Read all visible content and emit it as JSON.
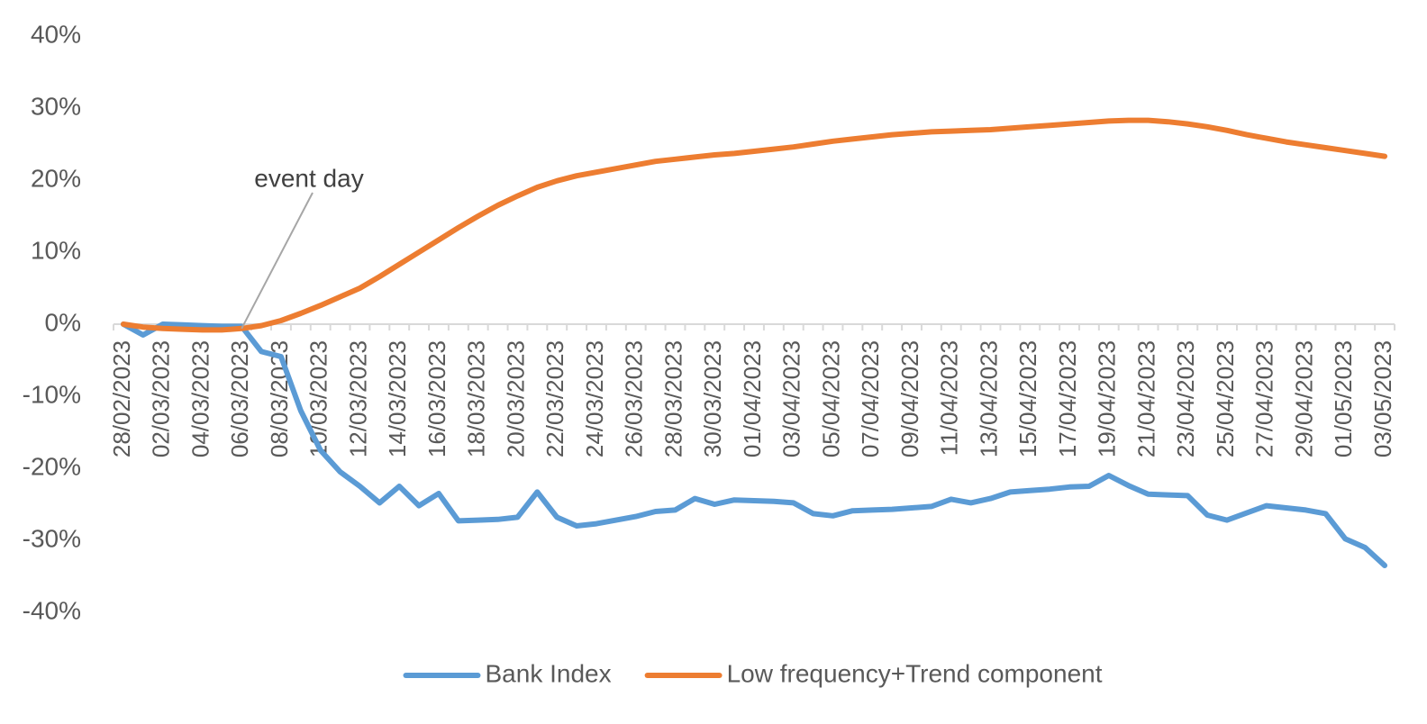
{
  "chart_data": {
    "type": "line",
    "categories": [
      "28/02/2023",
      null,
      "02/03/2023",
      null,
      "04/03/2023",
      null,
      "06/03/2023",
      null,
      "08/03/2023",
      null,
      "10/03/2023",
      null,
      "12/03/2023",
      null,
      "14/03/2023",
      null,
      "16/03/2023",
      null,
      "18/03/2023",
      null,
      "20/03/2023",
      null,
      "22/03/2023",
      null,
      "24/03/2023",
      null,
      "26/03/2023",
      null,
      "28/03/2023",
      null,
      "30/03/2023",
      null,
      "01/04/2023",
      null,
      "03/04/2023",
      null,
      "05/04/2023",
      null,
      "07/04/2023",
      null,
      "09/04/2023",
      null,
      "11/04/2023",
      null,
      "13/04/2023",
      null,
      "15/04/2023",
      null,
      "17/04/2023",
      null,
      "19/04/2023",
      null,
      "21/04/2023",
      null,
      "23/04/2023",
      null,
      "25/04/2023",
      null,
      "27/04/2023",
      null,
      "29/04/2023",
      null,
      "01/05/2023",
      null,
      "03/05/2023"
    ],
    "series": [
      {
        "name": "Bank Index",
        "color": "#5b9bd5",
        "values": [
          0,
          -1.5,
          0,
          -0.1,
          -0.2,
          -0.3,
          -0.3,
          -3.8,
          -4.5,
          -12,
          -17.5,
          -20.5,
          -22.5,
          -24.8,
          -22.5,
          -25.2,
          -23.5,
          -27.3,
          -27.2,
          -27.1,
          -26.8,
          -23.3,
          -26.8,
          -28,
          -27.7,
          -27.2,
          -26.7,
          -26,
          -25.8,
          -24.2,
          -25,
          -24.4,
          -24.5,
          -24.6,
          -24.8,
          -26.3,
          -26.6,
          -25.9,
          -25.8,
          -25.7,
          -25.5,
          -25.3,
          -24.3,
          -24.8,
          -24.2,
          -23.3,
          -23.1,
          -22.9,
          -22.6,
          -22.5,
          -21,
          -22.4,
          -23.6,
          -23.7,
          -23.8,
          -26.5,
          -27.2,
          -26.2,
          -25.2,
          -25.5,
          -25.8,
          -26.3,
          -29.8,
          -31,
          -33.5
        ]
      },
      {
        "name": "Low frequency+Trend component",
        "color": "#ed7d31",
        "values": [
          0,
          -0.4,
          -0.6,
          -0.7,
          -0.8,
          -0.8,
          -0.6,
          -0.2,
          0.5,
          1.5,
          2.6,
          3.8,
          5,
          6.6,
          8.3,
          10,
          11.7,
          13.4,
          15,
          16.5,
          17.8,
          19,
          19.9,
          20.6,
          21.1,
          21.6,
          22.1,
          22.6,
          22.9,
          23.2,
          23.5,
          23.7,
          24,
          24.3,
          24.6,
          25,
          25.4,
          25.7,
          26,
          26.3,
          26.5,
          26.7,
          26.8,
          26.9,
          27,
          27.2,
          27.4,
          27.6,
          27.8,
          28,
          28.2,
          28.3,
          28.3,
          28.1,
          27.8,
          27.4,
          26.9,
          26.3,
          25.8,
          25.3,
          24.9,
          24.5,
          24.1,
          23.7,
          23.3
        ]
      }
    ],
    "ylim": [
      -40,
      40
    ],
    "yticks": [
      {
        "value": -40,
        "label": "-40%"
      },
      {
        "value": -30,
        "label": "-30%"
      },
      {
        "value": -20,
        "label": "-20%"
      },
      {
        "value": -10,
        "label": "-10%"
      },
      {
        "value": 0,
        "label": "0%"
      },
      {
        "value": 10,
        "label": "10%"
      },
      {
        "value": 20,
        "label": "20%"
      },
      {
        "value": 30,
        "label": "30%"
      },
      {
        "value": 40,
        "label": "40%"
      }
    ],
    "grid": false,
    "legend": "bottom",
    "annotations": [
      {
        "text": "event day",
        "category": 6
      }
    ]
  }
}
